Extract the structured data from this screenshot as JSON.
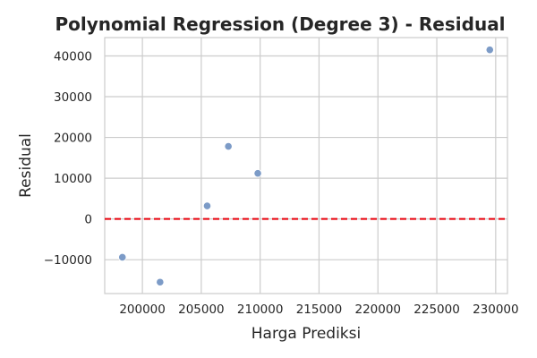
{
  "chart_data": {
    "type": "scatter",
    "title": "Polynomial Regression (Degree 3) - Residual",
    "xlabel": "Harga Prediksi",
    "ylabel": "Residual",
    "xlim": [
      196800,
      231000
    ],
    "ylim": [
      -18300,
      44500
    ],
    "xticks": [
      200000,
      205000,
      210000,
      215000,
      220000,
      225000,
      230000
    ],
    "xtick_labels": [
      "200000",
      "205000",
      "210000",
      "215000",
      "220000",
      "225000",
      "230000"
    ],
    "yticks": [
      -10000,
      0,
      10000,
      20000,
      30000,
      40000
    ],
    "ytick_labels": [
      "−10000",
      "0",
      "10000",
      "20000",
      "30000",
      "40000"
    ],
    "grid": true,
    "reference_line": {
      "y": 0,
      "style": "dashed",
      "color": "#e8000b"
    },
    "point_color": "#7c9bc7",
    "points": [
      {
        "x": 198300,
        "y": -9400
      },
      {
        "x": 201500,
        "y": -15500
      },
      {
        "x": 205500,
        "y": 3200
      },
      {
        "x": 207300,
        "y": 17800
      },
      {
        "x": 209800,
        "y": 11200
      },
      {
        "x": 229500,
        "y": 41500
      }
    ]
  }
}
